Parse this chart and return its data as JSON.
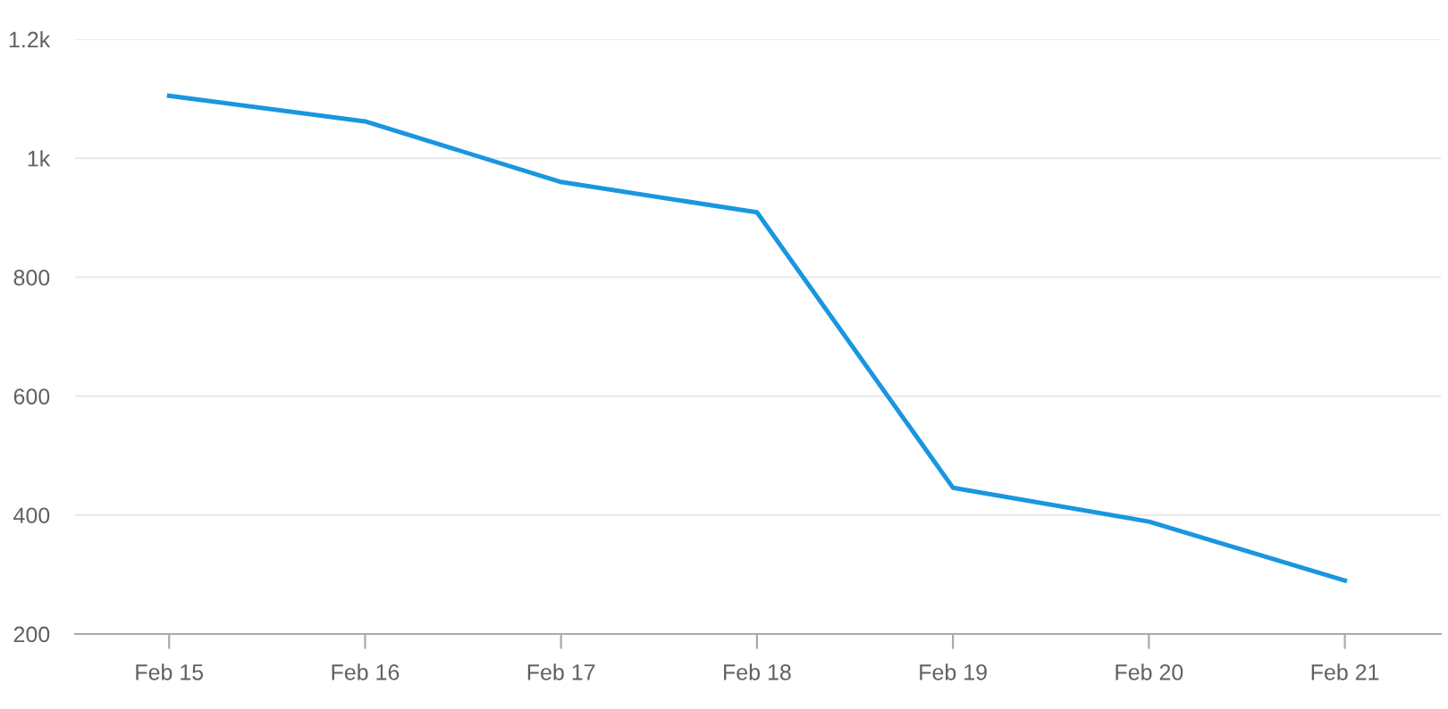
{
  "chart_data": {
    "type": "line",
    "categories": [
      "Feb 15",
      "Feb 16",
      "Feb 17",
      "Feb 18",
      "Feb 19",
      "Feb 20",
      "Feb 21"
    ],
    "series": [
      {
        "color": "#1a96e0",
        "values": [
          1105,
          1062,
          960,
          909,
          446,
          389,
          290
        ]
      }
    ],
    "ylim": [
      200,
      1200
    ],
    "yticks": [
      200,
      400,
      600,
      800,
      {
        "value": 1000,
        "label": "1k"
      },
      {
        "value": 1200,
        "label": "1.2k"
      }
    ],
    "grid": "y",
    "legend": false,
    "marker": "none",
    "line_style": "solid"
  }
}
